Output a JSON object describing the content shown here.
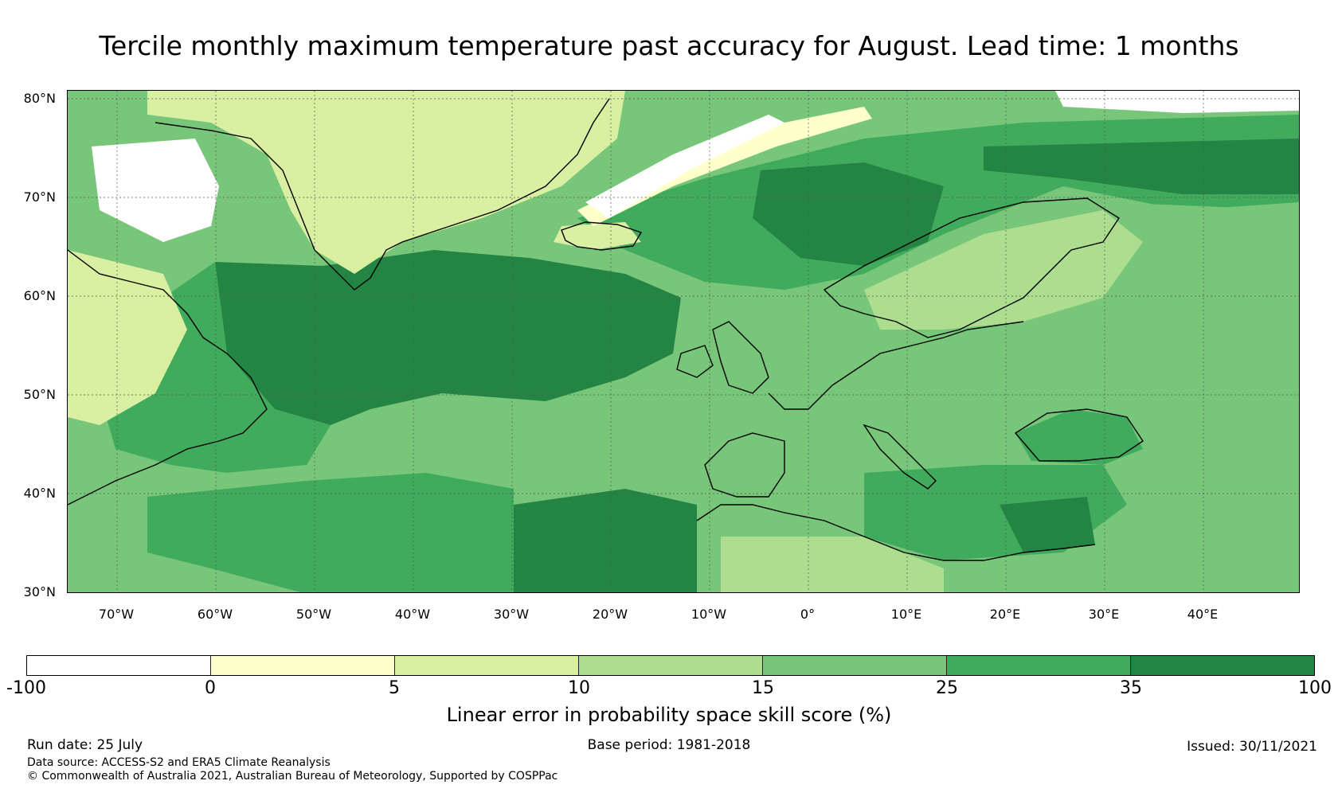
{
  "title": "Tercile monthly maximum temperature past accuracy for August. Lead time: 1 months",
  "map": {
    "lat_labels": [
      "80°N",
      "70°N",
      "60°N",
      "50°N",
      "40°N",
      "30°N"
    ],
    "lon_labels": [
      "70°W",
      "60°W",
      "50°W",
      "40°W",
      "30°W",
      "20°W",
      "10°W",
      "0°",
      "10°E",
      "20°E",
      "30°E",
      "40°E"
    ],
    "extent": {
      "lon_min": -75,
      "lon_max": 50,
      "lat_min": 30,
      "lat_max": 81
    },
    "land_outline_color": "#000000",
    "graticule": "dotted"
  },
  "colorbar": {
    "ticks": [
      "-100",
      "0",
      "5",
      "10",
      "15",
      "25",
      "35",
      "100"
    ],
    "colors": [
      "#ffffff",
      "#ffffcc",
      "#d9f0a3",
      "#addd8e",
      "#78c679",
      "#41ab5d",
      "#238443"
    ],
    "label": "Linear error in probability space skill score (%)"
  },
  "footer": {
    "run_date": "Run date: 25 July",
    "base_period": "Base period: 1981-2018",
    "issued": "Issued: 30/11/2021",
    "data_source": "Data source: ACCESS-S2 and ERA5 Climate Reanalysis",
    "copyright": "© Commonwealth of Australia 2021, Australian Bureau of Meteorology, Supported by COSPPac"
  }
}
